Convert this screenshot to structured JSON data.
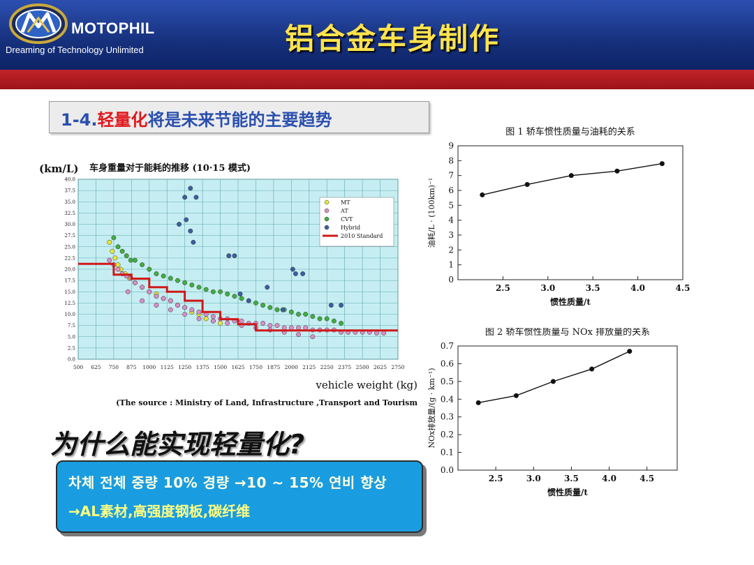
{
  "header": {
    "brand": "MOTOPHIL",
    "tagline": "Dreaming of Technology Unlimited",
    "title": "铝合金车身制作",
    "colors": {
      "header_blue": "#1a3a8f",
      "band_red": "#b11a20",
      "title_yellow": "#ffe34d"
    }
  },
  "subtitle": {
    "number": "1-4.",
    "highlight": "轻量化",
    "rest": "将是未来节能的主要趋势"
  },
  "question": "为什么能实现轻量化?",
  "blue_box": {
    "line1": "차체 전체 중량 10% 경량 →10 ~ 15% 연비 향상",
    "line2": "→AL素材,高强度钢板,碳纤维"
  },
  "chart_data": [
    {
      "type": "scatter",
      "title": "车身重量对于能耗的推移 (10·15 模式)",
      "ylabel": "(km/L)",
      "xlabel": "vehicle weight (kg)",
      "source": "(The source : Ministry of Land, Infrastructure ,Transport and Tourism",
      "xlim": [
        500,
        2750
      ],
      "ylim": [
        0,
        40
      ],
      "x_ticks": [
        "500",
        "625",
        "750",
        "875",
        "1000",
        "1125",
        "1250",
        "1375",
        "1500",
        "1625",
        "1750",
        "1875",
        "2000",
        "2125",
        "2250",
        "2375",
        "2500",
        "2625",
        "2750"
      ],
      "y_ticks": [
        "0.0",
        "2.5",
        "5.0",
        "7.5",
        "10.0",
        "12.5",
        "15.0",
        "17.5",
        "20.0",
        "22.5",
        "25.0",
        "27.5",
        "30.0",
        "32.5",
        "35.0",
        "37.5",
        "40.0"
      ],
      "grid": true,
      "legend_position": "top-right",
      "series": [
        {
          "name": "MT",
          "color": "#e8e83a",
          "x": [
            720,
            740,
            760,
            780,
            800,
            830,
            860,
            900,
            950,
            1000,
            1050,
            1100,
            1150,
            1200,
            1250,
            1300,
            1350,
            1400,
            1450,
            1500
          ],
          "y": [
            26,
            24,
            22.5,
            21,
            20,
            19,
            18,
            17,
            16,
            15,
            14.5,
            13.5,
            13,
            12,
            11.5,
            10.5,
            10,
            9,
            8.5,
            8
          ]
        },
        {
          "name": "AT",
          "color": "#d88ec8",
          "x": [
            720,
            750,
            780,
            810,
            840,
            870,
            900,
            950,
            1000,
            1050,
            1100,
            1150,
            1200,
            1250,
            1300,
            1350,
            1400,
            1450,
            1500,
            1550,
            1600,
            1650,
            1700,
            1750,
            1800,
            1850,
            1900,
            1950,
            2000,
            2050,
            2100,
            2150,
            2200,
            2250,
            2300,
            2350,
            2400,
            2450,
            2500,
            2550,
            2600,
            2650,
            850,
            950,
            1050,
            1150,
            1250,
            1350,
            1450,
            1550,
            1650,
            1750,
            1850,
            1950,
            2050,
            2150
          ],
          "y": [
            22,
            21,
            20,
            19,
            18.5,
            18,
            17,
            16,
            15,
            14,
            13.5,
            13,
            12,
            11.5,
            11,
            10.5,
            10,
            9.5,
            9,
            9,
            8.5,
            8.5,
            8,
            8,
            8,
            7.5,
            7.5,
            7,
            7,
            7,
            7,
            6.5,
            6.5,
            6.5,
            6.5,
            6,
            6,
            6,
            6,
            6,
            5.8,
            5.8,
            15,
            13,
            12,
            11,
            10,
            9,
            8.5,
            8,
            7.5,
            7,
            6.5,
            6,
            5.5,
            5
          ]
        },
        {
          "name": "CVT",
          "color": "#3fae3f",
          "x": [
            750,
            780,
            810,
            840,
            870,
            900,
            950,
            1000,
            1050,
            1100,
            1150,
            1200,
            1250,
            1300,
            1350,
            1400,
            1450,
            1500,
            1550,
            1600,
            1650,
            1700,
            1750,
            1800,
            1850,
            1900,
            1950,
            2000,
            2050,
            2100,
            2150,
            2200,
            2250,
            2300,
            2350
          ],
          "y": [
            27,
            25,
            24,
            23,
            22,
            22,
            21,
            20,
            19,
            18.5,
            18,
            17.5,
            17,
            16.5,
            16,
            15.5,
            15,
            15,
            14.5,
            14,
            13.5,
            13,
            12.5,
            12,
            11.5,
            11,
            11,
            10.5,
            10,
            10,
            9.5,
            9,
            9,
            8.5,
            8
          ]
        },
        {
          "name": "Hybrid",
          "color": "#3a5fa0",
          "x": [
            1210,
            1250,
            1260,
            1290,
            1330,
            1290,
            1310,
            1560,
            1600,
            1640,
            1700,
            1830,
            1940,
            2010,
            2030,
            2080,
            2280,
            2350
          ],
          "y": [
            30,
            36,
            31,
            38,
            36,
            28.5,
            26,
            23,
            23,
            14.5,
            13,
            16,
            11,
            20,
            19,
            19,
            12,
            12
          ]
        }
      ],
      "standard_line": {
        "name": "2010 Standard",
        "color": "#d01818",
        "x": [
          500,
          750,
          750,
          875,
          875,
          1000,
          1000,
          1125,
          1125,
          1250,
          1250,
          1375,
          1375,
          1500,
          1500,
          1625,
          1625,
          1750,
          1750,
          1875,
          1875,
          2000,
          2000,
          2125,
          2125,
          2250,
          2250,
          2375,
          2375,
          2750
        ],
        "y": [
          21.2,
          21.2,
          18.8,
          18.8,
          17.9,
          17.9,
          16.0,
          16.0,
          15.0,
          15.0,
          13.0,
          13.0,
          10.5,
          10.5,
          8.9,
          8.9,
          7.8,
          7.8,
          6.4,
          6.4,
          6.4,
          6.4,
          6.4,
          6.4,
          6.4,
          6.4,
          6.4,
          6.4,
          6.4,
          6.4
        ]
      }
    },
    {
      "type": "line",
      "title": "图 1 轿车惯性质量与油耗的关系",
      "xlabel": "惯性质量/t",
      "ylabel": "油耗/L · (100km)⁻¹",
      "xlim": [
        2.0,
        4.5
      ],
      "ylim": [
        0,
        9
      ],
      "x_ticks": [
        "2.5",
        "3.0",
        "3.5",
        "4.0",
        "4.5"
      ],
      "y_ticks": [
        "0",
        "1",
        "2",
        "3",
        "4",
        "5",
        "6",
        "7",
        "8",
        "9"
      ],
      "x": [
        2.27,
        2.77,
        3.26,
        3.77,
        4.27
      ],
      "values": [
        5.7,
        6.4,
        7.0,
        7.3,
        7.8
      ]
    },
    {
      "type": "line",
      "title": "图 2 轿车惯性质量与 NOx 排放量的关系",
      "xlabel": "惯性质量/t",
      "ylabel": "NOx排放量/(g · km⁻¹)",
      "xlim": [
        2.0,
        4.9
      ],
      "ylim": [
        0,
        0.7
      ],
      "x_ticks": [
        "2.5",
        "3.0",
        "3.5",
        "4.0",
        "4.5"
      ],
      "y_ticks": [
        "0.0",
        "0.1",
        "0.2",
        "0.3",
        "0.4",
        "0.5",
        "0.6",
        "0.7"
      ],
      "x": [
        2.27,
        2.77,
        3.26,
        3.77,
        4.27
      ],
      "values": [
        0.38,
        0.42,
        0.5,
        0.57,
        0.67
      ]
    }
  ]
}
